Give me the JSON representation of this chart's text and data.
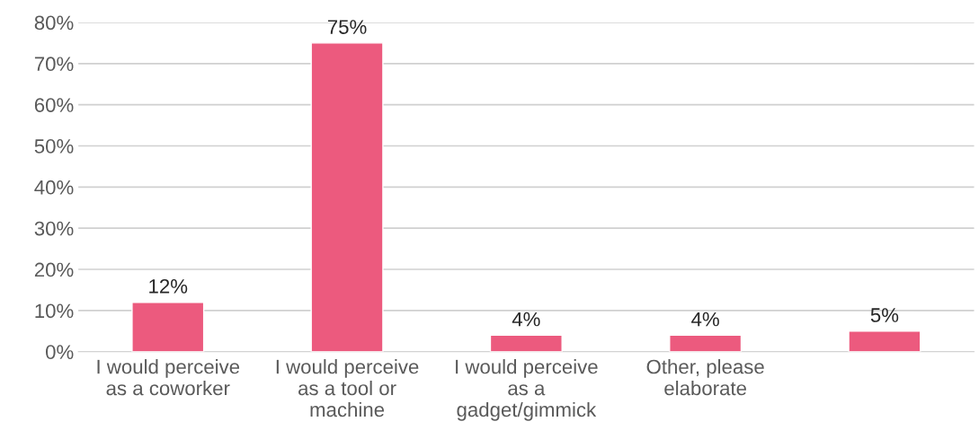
{
  "chart_data": {
    "type": "bar",
    "categories": [
      "I would perceive as a coworker",
      "I would perceive as a tool or machine",
      "I would perceive as a gadget/gimmick",
      "Other, please elaborate",
      null
    ],
    "values": [
      12,
      75,
      4,
      4,
      5
    ],
    "color": "#ec5a7e",
    "value_labels": [
      "12%",
      "75%",
      "4%",
      "4%",
      "5%"
    ],
    "ylim": [
      0,
      80
    ],
    "yticks": [
      {
        "value": 0,
        "label": "0%"
      },
      {
        "value": 10,
        "label": "10%"
      },
      {
        "value": 20,
        "label": "20%"
      },
      {
        "value": 30,
        "label": "30%"
      },
      {
        "value": 40,
        "label": "40%"
      },
      {
        "value": 50,
        "label": "50%"
      },
      {
        "value": 60,
        "label": "60%"
      },
      {
        "value": 70,
        "label": "70%"
      },
      {
        "value": 80,
        "label": "80%"
      }
    ],
    "grid": "y",
    "legend": false
  }
}
